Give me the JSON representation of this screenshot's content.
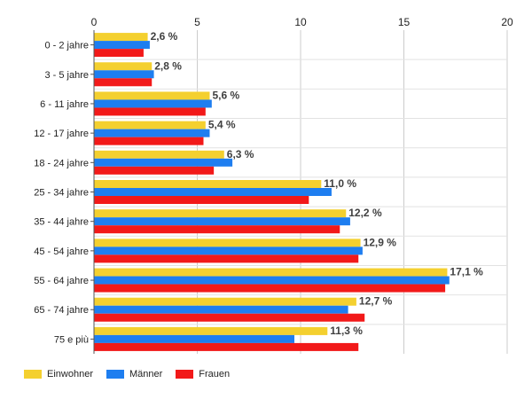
{
  "chart_data": {
    "type": "bar",
    "orientation": "horizontal",
    "categories": [
      "0 - 2 jahre",
      "3 - 5 jahre",
      "6 - 11 jahre",
      "12 - 17 jahre",
      "18 - 24 jahre",
      "25 - 34 jahre",
      "35 - 44 jahre",
      "45 - 54 jahre",
      "55 - 64 jahre",
      "65 - 74 jahre",
      "75 e più"
    ],
    "series": [
      {
        "name": "Einwohner",
        "color": "#f4d02f",
        "values": [
          2.6,
          2.8,
          5.6,
          5.4,
          6.3,
          11.0,
          12.2,
          12.9,
          17.1,
          12.7,
          11.3
        ]
      },
      {
        "name": "Männer",
        "color": "#1e7ef0",
        "values": [
          2.7,
          2.9,
          5.7,
          5.6,
          6.7,
          11.5,
          12.4,
          13.0,
          17.2,
          12.3,
          9.7
        ]
      },
      {
        "name": "Frauen",
        "color": "#f21919",
        "values": [
          2.4,
          2.8,
          5.4,
          5.3,
          5.8,
          10.4,
          11.9,
          12.8,
          17.0,
          13.1,
          12.8
        ]
      }
    ],
    "data_labels": [
      "2,6 %",
      "2,8 %",
      "5,6 %",
      "5,4 %",
      "6,3 %",
      "11,0 %",
      "12,2 %",
      "12,9 %",
      "17,1 %",
      "12,7 %",
      "11,3 %"
    ],
    "x_ticks": [
      "0",
      "5",
      "10",
      "15",
      "20"
    ],
    "xlim": [
      0,
      20
    ],
    "grid": true,
    "legend_position": "bottom-left"
  }
}
